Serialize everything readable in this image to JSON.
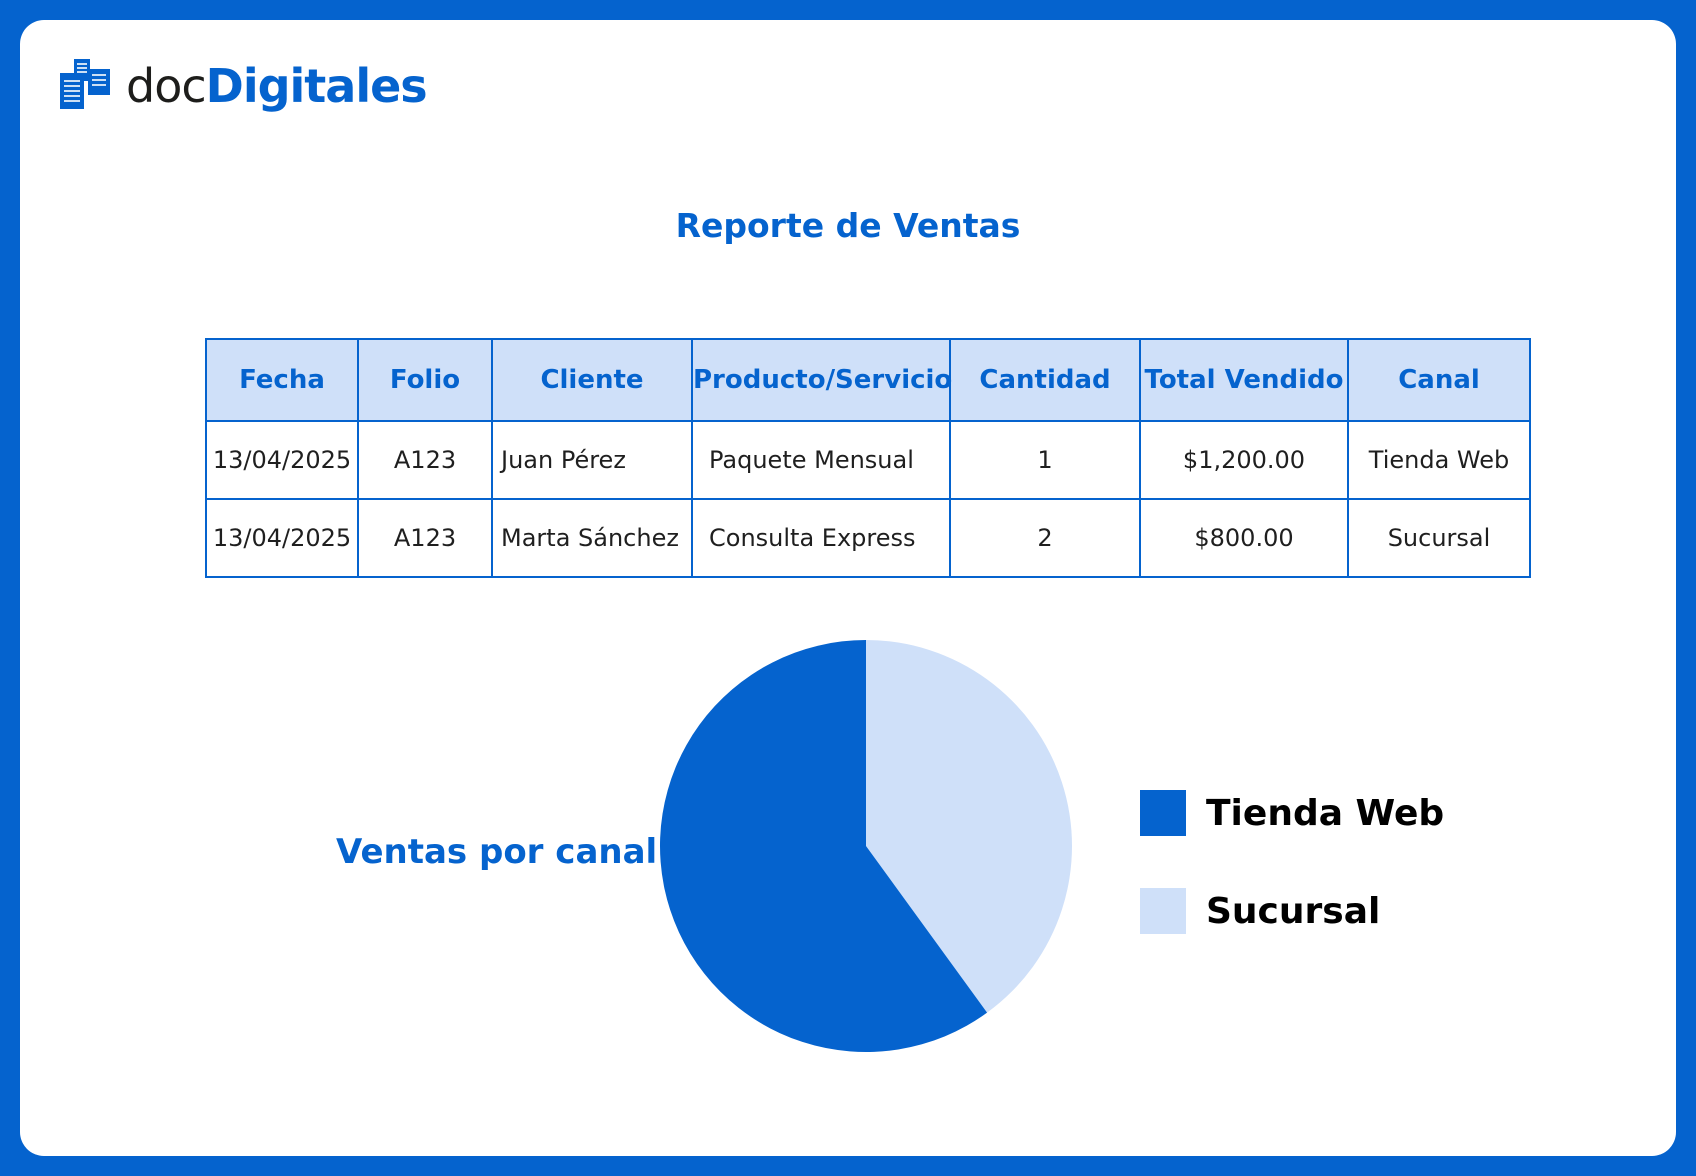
{
  "brand": {
    "name_part1": "doc",
    "name_part2": "Digitales",
    "icon": "document-stack-icon"
  },
  "report": {
    "title": "Reporte de Ventas"
  },
  "table": {
    "headers": [
      "Fecha",
      "Folio",
      "Cliente",
      "Producto/Servicio",
      "Cantidad",
      "Total Vendido",
      "Canal"
    ],
    "rows": [
      [
        "13/04/2025",
        "A123",
        "Juan Pérez",
        "Paquete Mensual",
        "1",
        "$1,200.00",
        "Tienda Web"
      ],
      [
        "13/04/2025",
        "A123",
        "Marta Sánchez",
        "Consulta Express",
        "2",
        "$800.00",
        "Sucursal"
      ]
    ]
  },
  "chart_data": {
    "type": "pie",
    "title": "Ventas por canal",
    "categories": [
      "Tienda Web",
      "Sucursal"
    ],
    "values": [
      1200,
      800
    ],
    "colors": [
      "#0563ce",
      "#cfe0f9"
    ],
    "legend_position": "right"
  },
  "colors": {
    "accent": "#0563ce",
    "header_bg": "#cfe0f9",
    "text": "#1f1f1f"
  }
}
